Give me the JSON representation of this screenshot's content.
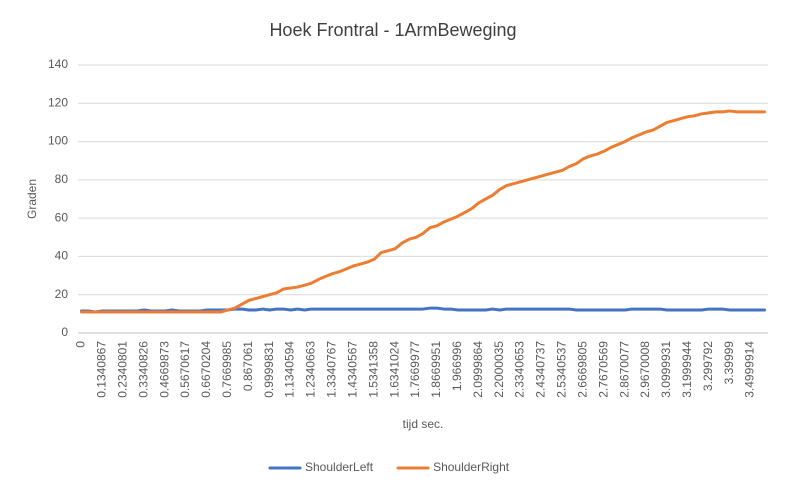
{
  "chart_data": {
    "type": "line",
    "title": "Hoek Frontral - 1ArmBeweging",
    "x_label": "tijd sec.",
    "y_label": "Graden",
    "categories": [
      "0",
      null,
      null,
      "0.1340867",
      null,
      null,
      "0.2340801",
      null,
      null,
      "0.3340826",
      null,
      null,
      "0.4669873",
      null,
      null,
      "0.5670617",
      null,
      null,
      "0.6670204",
      null,
      null,
      "0.7669985",
      null,
      null,
      "0.867061",
      null,
      null,
      "0.9999831",
      null,
      null,
      "1.1340594",
      null,
      null,
      "1.2340663",
      null,
      null,
      "1.3340767",
      null,
      null,
      "1.4340567",
      null,
      null,
      "1.5341358",
      null,
      null,
      "1.6341024",
      null,
      null,
      "1.7669977",
      null,
      null,
      "1.8669951",
      null,
      null,
      "1.966996",
      null,
      null,
      "2.0999864",
      null,
      null,
      "2.2000035",
      null,
      null,
      "2.3340653",
      null,
      null,
      "2.4340737",
      null,
      null,
      "2.5340537",
      null,
      null,
      "2.6669805",
      null,
      null,
      "2.7670569",
      null,
      null,
      "2.8670077",
      null,
      null,
      "2.9670008",
      null,
      null,
      "3.0999931",
      null,
      null,
      "3.1999944",
      null,
      null,
      "3.299792",
      null,
      null,
      "3.39999",
      null,
      null,
      "3.4999914",
      null,
      null
    ],
    "series": [
      {
        "name": "ShoulderLeft",
        "color": "#4472c4",
        "values": [
          11.5,
          11.5,
          11,
          11.5,
          11.5,
          11.5,
          11.5,
          11.5,
          11.5,
          12,
          11.5,
          11.5,
          11.5,
          12,
          11.5,
          11.5,
          11.5,
          11.5,
          12,
          12,
          12,
          12,
          12.5,
          12.5,
          12,
          12,
          12.5,
          12,
          12.5,
          12.5,
          12,
          12.5,
          12,
          12.5,
          12.5,
          12.5,
          12.5,
          12.5,
          12.5,
          12.5,
          12.5,
          12.5,
          12.5,
          12.5,
          12.5,
          12.5,
          12.5,
          12.5,
          12.5,
          12.5,
          13,
          13,
          12.5,
          12.5,
          12,
          12,
          12,
          12,
          12,
          12.5,
          12,
          12.5,
          12.5,
          12.5,
          12.5,
          12.5,
          12.5,
          12.5,
          12.5,
          12.5,
          12.5,
          12,
          12,
          12,
          12,
          12,
          12,
          12,
          12,
          12.5,
          12.5,
          12.5,
          12.5,
          12.5,
          12,
          12,
          12,
          12,
          12,
          12,
          12.5,
          12.5,
          12.5,
          12,
          12,
          12,
          12,
          12,
          12
        ]
      },
      {
        "name": "ShoulderRight",
        "color": "#ed7d31",
        "values": [
          11,
          11,
          11,
          11,
          11,
          11,
          11,
          11,
          11,
          11,
          11,
          11,
          11,
          11,
          11,
          11,
          11,
          11,
          11,
          11,
          11,
          12,
          13,
          15,
          17,
          18,
          19,
          20,
          21,
          23,
          23.5,
          24,
          25,
          26,
          28,
          29.5,
          31,
          32,
          33.5,
          35,
          36,
          37,
          38.5,
          42,
          43,
          44,
          47,
          49,
          50,
          52,
          55,
          56,
          58,
          59.5,
          61,
          63,
          65,
          68,
          70,
          72,
          75,
          77,
          78,
          79,
          80,
          81,
          82,
          83,
          84,
          85,
          87,
          88.5,
          91,
          92.5,
          93.5,
          95,
          97,
          98.5,
          100,
          102,
          103.5,
          105,
          106,
          108,
          110,
          111,
          112,
          113,
          113.5,
          114.5,
          115,
          115.5,
          115.5,
          116,
          115.5,
          115.5,
          115.5,
          115.5,
          115.5
        ]
      }
    ],
    "ylim": [
      0,
      140
    ],
    "yticks": [
      0,
      20,
      40,
      60,
      80,
      100,
      120,
      140
    ],
    "grid": true,
    "legend": "bottom"
  }
}
